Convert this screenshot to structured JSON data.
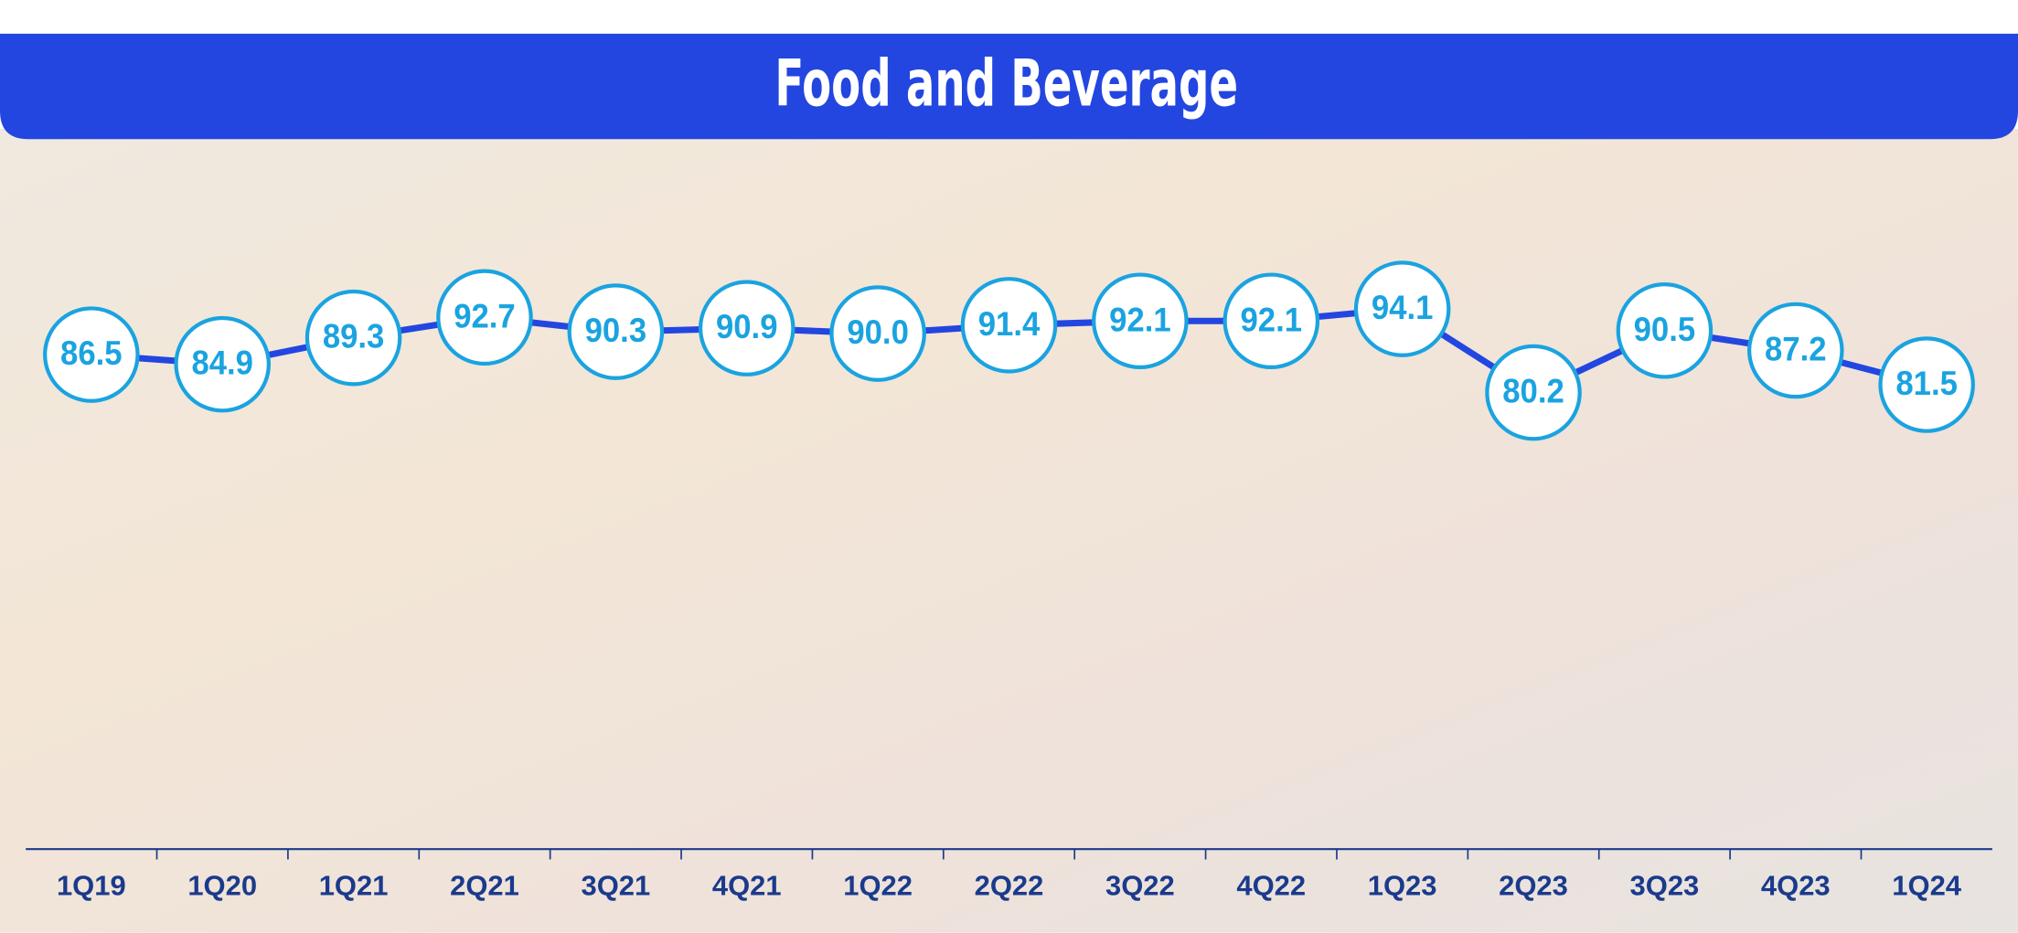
{
  "chart_data": {
    "type": "line",
    "title": "Food and Beverage",
    "categories": [
      "1Q19",
      "1Q20",
      "1Q21",
      "2Q21",
      "3Q21",
      "4Q21",
      "1Q22",
      "2Q22",
      "3Q22",
      "4Q22",
      "1Q23",
      "2Q23",
      "3Q23",
      "4Q23",
      "1Q24"
    ],
    "values": [
      86.5,
      84.9,
      89.3,
      92.7,
      90.3,
      90.9,
      90.0,
      91.4,
      92.1,
      92.1,
      94.1,
      80.2,
      90.5,
      87.2,
      81.5
    ],
    "value_labels": [
      "86.5",
      "84.9",
      "89.3",
      "92.7",
      "90.3",
      "90.9",
      "90.0",
      "91.4",
      "92.1",
      "92.1",
      "94.1",
      "80.2",
      "90.5",
      "87.2",
      "81.5"
    ],
    "color": "#2346e0",
    "marker_color": "#1aa3e0"
  }
}
